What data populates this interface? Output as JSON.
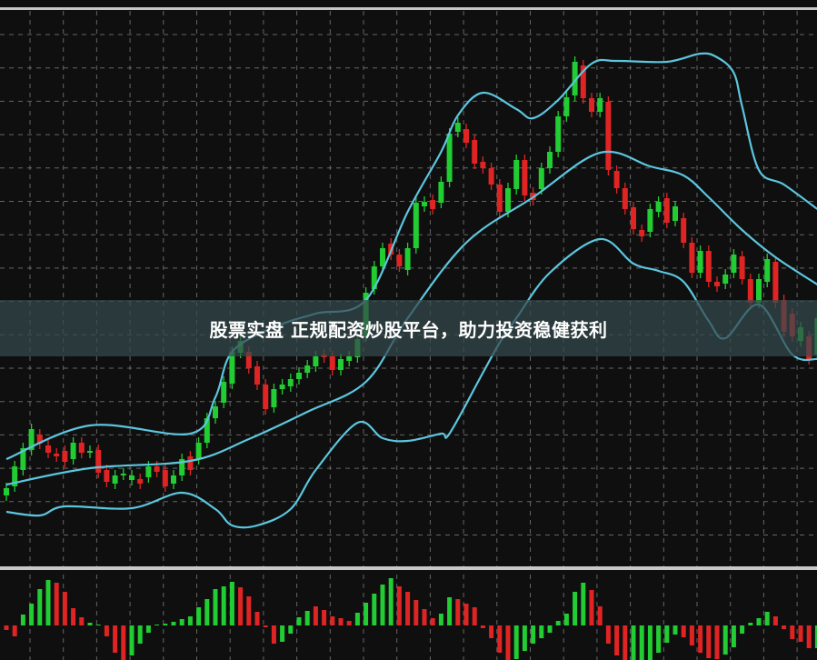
{
  "banner": {
    "text": "股票实盘 正规配资炒股平台，助力投资稳健获利"
  },
  "colors": {
    "up": "#22cc33",
    "down": "#e02424",
    "band": "#5cc6de",
    "background": "#0f0f0f",
    "grid": "#8a8a8a",
    "separator": "#c8c8c8"
  },
  "chart_data": {
    "type": "candlestick",
    "grid": true,
    "price_axis_labels": false,
    "candles": {
      "open": [
        55,
        65,
        83,
        105,
        122,
        110,
        101,
        104,
        95,
        113,
        102,
        105,
        83,
        68,
        78,
        72,
        73,
        75,
        87,
        83,
        68,
        77,
        98,
        95,
        113,
        140,
        157,
        178,
        212,
        213,
        197,
        177,
        152,
        172,
        175,
        183,
        190,
        197,
        210,
        208,
        193,
        203,
        207,
        230,
        282,
        307,
        332,
        320,
        303,
        327,
        373,
        380,
        377,
        400,
        455,
        458,
        446,
        422,
        415,
        397,
        367,
        392,
        424,
        388,
        392,
        415,
        433,
        472,
        495,
        528,
        492,
        477,
        488,
        412,
        393,
        372,
        347,
        345,
        367,
        382,
        357,
        360,
        333,
        300,
        324,
        290,
        288,
        300,
        318,
        293,
        267,
        290,
        312,
        270,
        255,
        225,
        230,
        210
      ],
      "close": [
        63,
        87,
        107,
        128,
        112,
        102,
        98,
        92,
        113,
        102,
        104,
        80,
        70,
        77,
        79,
        77,
        68,
        87,
        81,
        65,
        77,
        95,
        83,
        113,
        140,
        153,
        180,
        213,
        225,
        195,
        177,
        150,
        172,
        177,
        183,
        190,
        198,
        208,
        207,
        193,
        205,
        208,
        227,
        278,
        307,
        327,
        320,
        307,
        327,
        377,
        378,
        370,
        400,
        453,
        465,
        443,
        420,
        415,
        397,
        367,
        393,
        424,
        385,
        380,
        415,
        433,
        472,
        493,
        532,
        492,
        477,
        492,
        413,
        393,
        370,
        348,
        340,
        370,
        378,
        355,
        373,
        333,
        300,
        324,
        290,
        285,
        298,
        320,
        293,
        267,
        293,
        315,
        267,
        235,
        230,
        240,
        205,
        250
      ]
    },
    "bollinger_bands": {
      "upper": [
        [
          0,
          95
        ],
        [
          10,
          132
        ],
        [
          22,
          123
        ],
        [
          25,
          163
        ],
        [
          27,
          213
        ],
        [
          32,
          240
        ],
        [
          37,
          255
        ],
        [
          43,
          270
        ],
        [
          48,
          367
        ],
        [
          52,
          433
        ],
        [
          54,
          473
        ],
        [
          57,
          498
        ],
        [
          61,
          480
        ],
        [
          63,
          470
        ],
        [
          66,
          490
        ],
        [
          70,
          530
        ],
        [
          73,
          533
        ],
        [
          79,
          532
        ],
        [
          83,
          541
        ],
        [
          85,
          537
        ],
        [
          87,
          520
        ],
        [
          88,
          483
        ],
        [
          90,
          413
        ],
        [
          93,
          397
        ],
        [
          97,
          370
        ]
      ],
      "middle": [
        [
          0,
          67
        ],
        [
          10,
          85
        ],
        [
          22,
          93
        ],
        [
          29,
          117
        ],
        [
          36,
          147
        ],
        [
          43,
          180
        ],
        [
          48,
          250
        ],
        [
          55,
          333
        ],
        [
          63,
          383
        ],
        [
          71,
          432
        ],
        [
          77,
          417
        ],
        [
          81,
          407
        ],
        [
          84,
          383
        ],
        [
          88,
          347
        ],
        [
          92,
          317
        ],
        [
          97,
          287
        ]
      ],
      "lower": [
        [
          0,
          37
        ],
        [
          4,
          33
        ],
        [
          7,
          43
        ],
        [
          15,
          41
        ],
        [
          21,
          58
        ],
        [
          25,
          40
        ],
        [
          27,
          22
        ],
        [
          30,
          22
        ],
        [
          34,
          40
        ],
        [
          37,
          83
        ],
        [
          42,
          135
        ],
        [
          45,
          118
        ],
        [
          48,
          115
        ],
        [
          52,
          123
        ],
        [
          53,
          123
        ],
        [
          57,
          190
        ],
        [
          59,
          223
        ],
        [
          61,
          250
        ],
        [
          65,
          300
        ],
        [
          71,
          337
        ],
        [
          75,
          310
        ],
        [
          78,
          302
        ],
        [
          81,
          290
        ],
        [
          84,
          247
        ],
        [
          86,
          228
        ],
        [
          90,
          265
        ],
        [
          94,
          210
        ],
        [
          97,
          205
        ]
      ]
    },
    "histogram": {
      "values": [
        -5,
        -12,
        12,
        24,
        40,
        50,
        47,
        37,
        19,
        9,
        3,
        0,
        -12,
        -30,
        -40,
        -33,
        -20,
        -8,
        0,
        2,
        4,
        7,
        10,
        20,
        29,
        40,
        43,
        48,
        42,
        32,
        15,
        -2,
        -20,
        -18,
        -9,
        9,
        16,
        21,
        17,
        10,
        8,
        5,
        14,
        25,
        35,
        45,
        52,
        43,
        37,
        28,
        18,
        8,
        13,
        31,
        29,
        24,
        20,
        -3,
        -14,
        -30,
        -38,
        -37,
        -28,
        -20,
        -14,
        -8,
        5,
        13,
        37,
        47,
        39,
        21,
        -20,
        -33,
        -38,
        -38,
        -38,
        -38,
        -30,
        -19,
        -10,
        -13,
        -22,
        -30,
        -36,
        -37,
        -32,
        -24,
        -9,
        3,
        8,
        15,
        10,
        -4,
        -15,
        -18,
        -25,
        -25
      ],
      "colors": [
        "down",
        "down",
        "up",
        "up",
        "up",
        "up",
        "down",
        "down",
        "down",
        "down",
        "up",
        "up",
        "down",
        "down",
        "down",
        "up",
        "up",
        "up",
        "up",
        "up",
        "up",
        "up",
        "up",
        "up",
        "up",
        "up",
        "up",
        "up",
        "down",
        "down",
        "down",
        "down",
        "down",
        "up",
        "up",
        "up",
        "up",
        "down",
        "down",
        "down",
        "down",
        "down",
        "up",
        "up",
        "up",
        "up",
        "up",
        "down",
        "down",
        "down",
        "down",
        "down",
        "up",
        "up",
        "down",
        "down",
        "down",
        "down",
        "down",
        "down",
        "down",
        "up",
        "up",
        "up",
        "up",
        "up",
        "up",
        "up",
        "up",
        "up",
        "down",
        "down",
        "down",
        "down",
        "down",
        "up",
        "up",
        "up",
        "up",
        "up",
        "up",
        "down",
        "down",
        "down",
        "down",
        "down",
        "up",
        "up",
        "up",
        "up",
        "up",
        "up",
        "down",
        "down",
        "down",
        "down",
        "down",
        "up"
      ]
    }
  }
}
